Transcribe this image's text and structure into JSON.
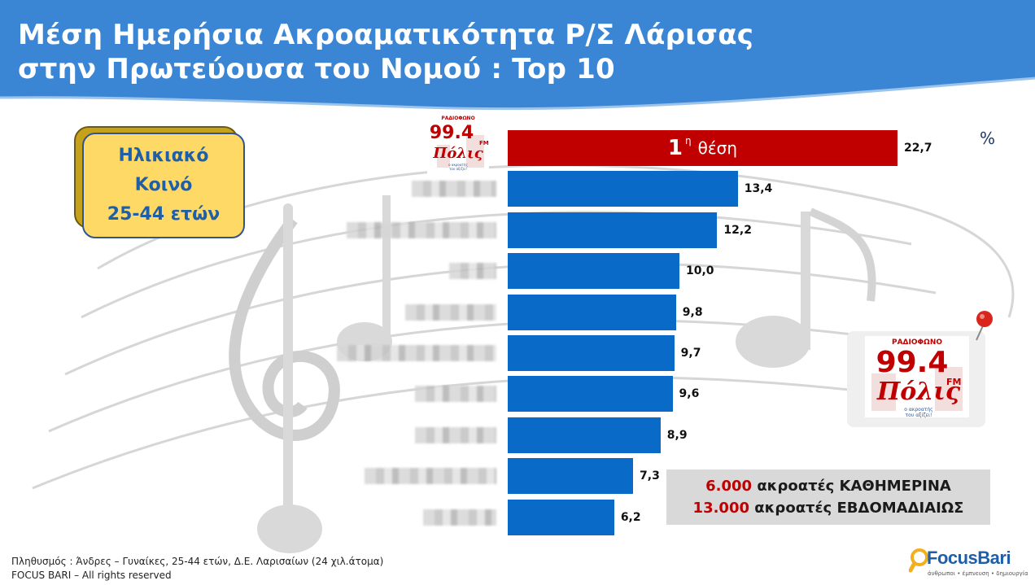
{
  "header": {
    "title_line1": "Μέση Ημερήσια Ακροαματικότητα Ρ/Σ Λάρισας",
    "title_line2": "στην Πρωτεύουσα του Νομού : Top 10"
  },
  "audience": {
    "line1": "Ηλικιακό",
    "line2": "Κοινό",
    "line3": "25-44 ετών"
  },
  "unit_label": "%",
  "first_rank": {
    "number": "1",
    "superscript": "η",
    "word": "θέση"
  },
  "chart_data": {
    "type": "bar",
    "orientation": "horizontal",
    "values": [
      22.7,
      13.4,
      12.2,
      10.0,
      9.8,
      9.7,
      9.6,
      8.9,
      7.3,
      6.2
    ],
    "value_labels": [
      "22,7",
      "13,4",
      "12,2",
      "10,0",
      "9,8",
      "9,7",
      "9,6",
      "8,9",
      "7,3",
      "6,2"
    ],
    "xlim": [
      0,
      35
    ],
    "colors": {
      "highlight": "#c00000",
      "default": "#0a6ac8"
    }
  },
  "logo": {
    "top_text": "ΡΑΔΙΟΦΩΝΟ",
    "frequency": "99.4",
    "band": "FM",
    "name": "Πόλις",
    "slogan": "ο ακροατής\nτου αξίζει!"
  },
  "stats": {
    "daily_num": "6.000",
    "daily_text": " ακροατές ΚΑΘΗΜΕΡΙΝΑ",
    "weekly_num": "13.000",
    "weekly_text": " ακροατές ΕΒΔΟΜΑΔΙΑΙΩΣ"
  },
  "footnote": {
    "population": "Πληθυσμός : Άνδρες – Γυναίκες, 25-44 ετών, Δ.Ε. Λαρισαίων (24  χιλ.άτομα)",
    "copyright": "FOCUS BARI – All rights reserved"
  },
  "focus_logo": {
    "brand": "FocusBari",
    "tagline": "άνθρωποι • έμπνευση • δημιουργία"
  }
}
